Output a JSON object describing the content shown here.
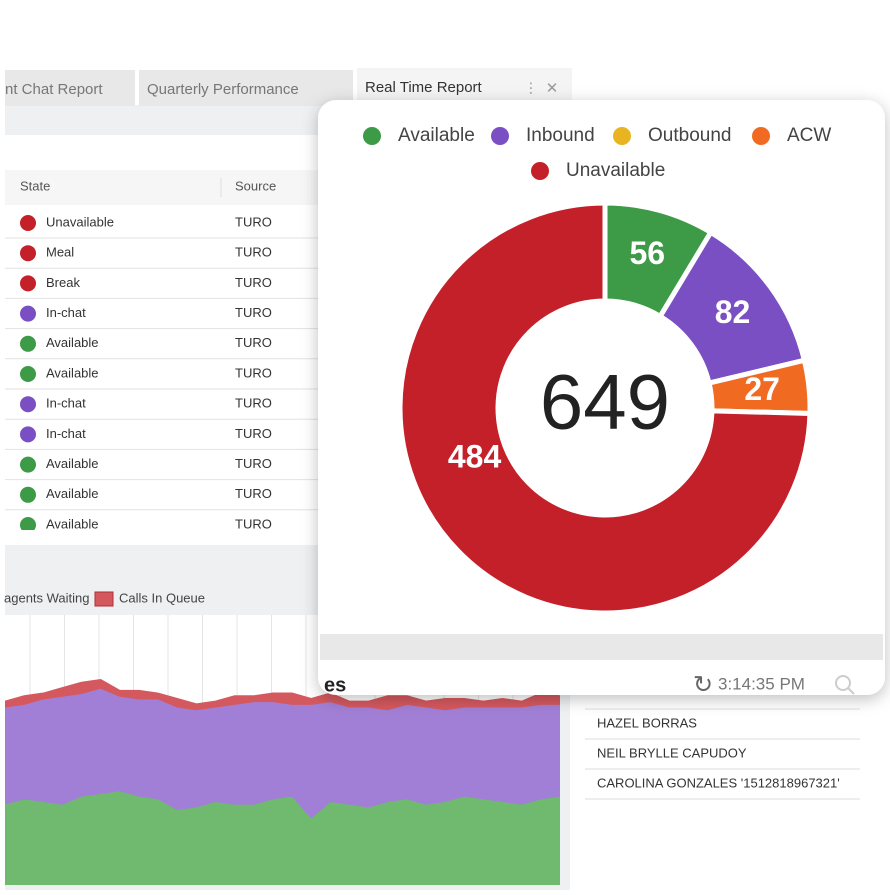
{
  "tabs": [
    "nt Chat Report",
    "Quarterly Performance",
    "Real Time Report"
  ],
  "table": {
    "headers": [
      "State",
      "Source"
    ],
    "rows": [
      {
        "state": "Unavailable",
        "source": "TURO"
      },
      {
        "state": "Meal",
        "source": "TURO"
      },
      {
        "state": "Break",
        "source": "TURO"
      },
      {
        "state": "In-chat",
        "source": "TURO"
      },
      {
        "state": "Available",
        "source": "TURO"
      },
      {
        "state": "Available",
        "source": "TURO"
      },
      {
        "state": "In-chat",
        "source": "TURO"
      },
      {
        "state": "In-chat",
        "source": "TURO"
      },
      {
        "state": "Available",
        "source": "TURO"
      },
      {
        "state": "Available",
        "source": "TURO"
      },
      {
        "state": "Available",
        "source": "TURO"
      }
    ],
    "state_colors": {
      "Unavailable": "#c4202a",
      "Meal": "#c4202a",
      "Break": "#c4202a",
      "In-chat": "#7b4fc4",
      "Available": "#3d9a47"
    }
  },
  "panel_title": "es",
  "time": "3:14:35 PM",
  "agent_list": [
    "HAZEL BORRAS",
    "NEIL BRYLLE CAPUDOY",
    "CAROLINA GONZALES '1512818967321'"
  ],
  "chart_data": [
    {
      "type": "pie",
      "donut": true,
      "total": 649,
      "categories": [
        "Available",
        "Inbound",
        "Outbound",
        "ACW",
        "Unavailable"
      ],
      "values": [
        56,
        82,
        0,
        27,
        484
      ],
      "colors": [
        "#3d9a47",
        "#7b4fc4",
        "#e8b422",
        "#f06a22",
        "#c4202a"
      ]
    },
    {
      "type": "area",
      "stacked": true,
      "ylim": [
        0,
        100
      ],
      "grid": true,
      "series": [
        {
          "name": null,
          "color": "#6fba6f",
          "values": [
            30,
            32,
            31,
            30,
            33,
            34,
            35,
            33,
            32,
            28,
            29,
            31,
            30,
            30,
            32,
            33,
            25,
            31,
            30,
            29,
            31,
            32,
            30,
            31,
            33,
            32,
            31,
            30,
            32,
            33
          ]
        },
        {
          "name": "agents Waiting",
          "color": "#a27fd6",
          "values": [
            36,
            35,
            38,
            40,
            38,
            39,
            35,
            36,
            37,
            38,
            36,
            35,
            37,
            38,
            36,
            34,
            42,
            37,
            36,
            37,
            34,
            35,
            36,
            34,
            33,
            34,
            35,
            36,
            35,
            34
          ]
        },
        {
          "name": "Calls In Queue",
          "color": "#d4595f",
          "values": [
            2,
            3,
            2,
            3,
            4,
            3,
            2,
            3,
            2,
            3,
            2,
            2,
            3,
            2,
            3,
            4,
            2,
            3,
            2,
            2,
            5,
            3,
            2,
            4,
            3,
            2,
            3,
            2,
            4,
            3
          ]
        }
      ]
    }
  ]
}
